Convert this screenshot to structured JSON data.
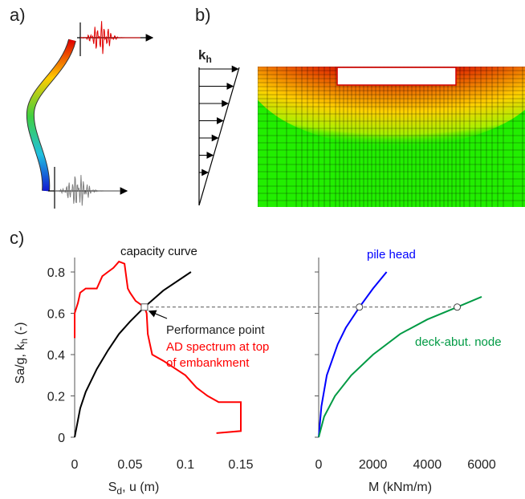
{
  "panel_labels": [
    "a)",
    "b)",
    "c)"
  ],
  "kh_label": {
    "text": "k",
    "sub": "h"
  },
  "chart_data": [
    {
      "type": "line",
      "xlabel": {
        "text": "S",
        "sub": "d",
        "tail": ", u (m)"
      },
      "ylabel": {
        "text": "Sa/g, k",
        "sub": "h",
        "tail": " (-)"
      },
      "xlim": [
        0,
        0.15
      ],
      "xticks": [
        0,
        0.05,
        0.1,
        0.15
      ],
      "ylim": [
        0,
        0.87
      ],
      "yticks": [
        0,
        0.2,
        0.4,
        0.6,
        0.8
      ],
      "series": [
        {
          "name": [
            "capacity curve"
          ],
          "color": "#000000",
          "x": [
            0,
            0.005,
            0.01,
            0.02,
            0.03,
            0.04,
            0.05,
            0.063,
            0.08,
            0.105
          ],
          "values": [
            0,
            0.14,
            0.22,
            0.33,
            0.42,
            0.5,
            0.56,
            0.63,
            0.71,
            0.8
          ]
        },
        {
          "name": [
            "AD spectrum at top",
            "of embankment"
          ],
          "color": "#ff0000",
          "x": [
            0,
            0,
            0.003,
            0.005,
            0.01,
            0.02,
            0.025,
            0.03,
            0.035,
            0.04,
            0.045,
            0.048,
            0.05,
            0.055,
            0.063,
            0.065,
            0.066,
            0.068,
            0.07,
            0.08,
            0.1,
            0.11,
            0.12,
            0.13,
            0.15,
            0.15,
            0.128
          ],
          "values": [
            0.48,
            0.6,
            0.65,
            0.7,
            0.72,
            0.72,
            0.78,
            0.8,
            0.82,
            0.85,
            0.84,
            0.72,
            0.7,
            0.66,
            0.63,
            0.6,
            0.5,
            0.45,
            0.4,
            0.37,
            0.3,
            0.24,
            0.2,
            0.17,
            0.17,
            0.03,
            0.02
          ]
        }
      ],
      "performance_point": {
        "label": "Performance point",
        "x": 0.063,
        "y": 0.63
      }
    },
    {
      "type": "line",
      "xlabel": {
        "text": "M (kNm/m)"
      },
      "xlim": [
        0,
        6000
      ],
      "xticks": [
        0,
        2000,
        4000,
        6000
      ],
      "ylim": [
        0,
        0.87
      ],
      "yticks": [
        0,
        0.2,
        0.4,
        0.6,
        0.8
      ],
      "series": [
        {
          "name": [
            "pile head"
          ],
          "color": "#0000ff",
          "x": [
            0,
            100,
            300,
            700,
            1000,
            1500,
            2000,
            2500
          ],
          "values": [
            0,
            0.15,
            0.3,
            0.45,
            0.53,
            0.63,
            0.72,
            0.8
          ]
        },
        {
          "name": [
            "deck-abut. node"
          ],
          "color": "#009a44",
          "x": [
            0,
            200,
            600,
            1200,
            2000,
            3000,
            4000,
            5100,
            6000
          ],
          "values": [
            0,
            0.1,
            0.2,
            0.3,
            0.4,
            0.5,
            0.57,
            0.63,
            0.68
          ]
        }
      ],
      "points": {
        "x": [
          1500,
          5100
        ],
        "y": [
          0.63,
          0.63
        ]
      }
    }
  ]
}
